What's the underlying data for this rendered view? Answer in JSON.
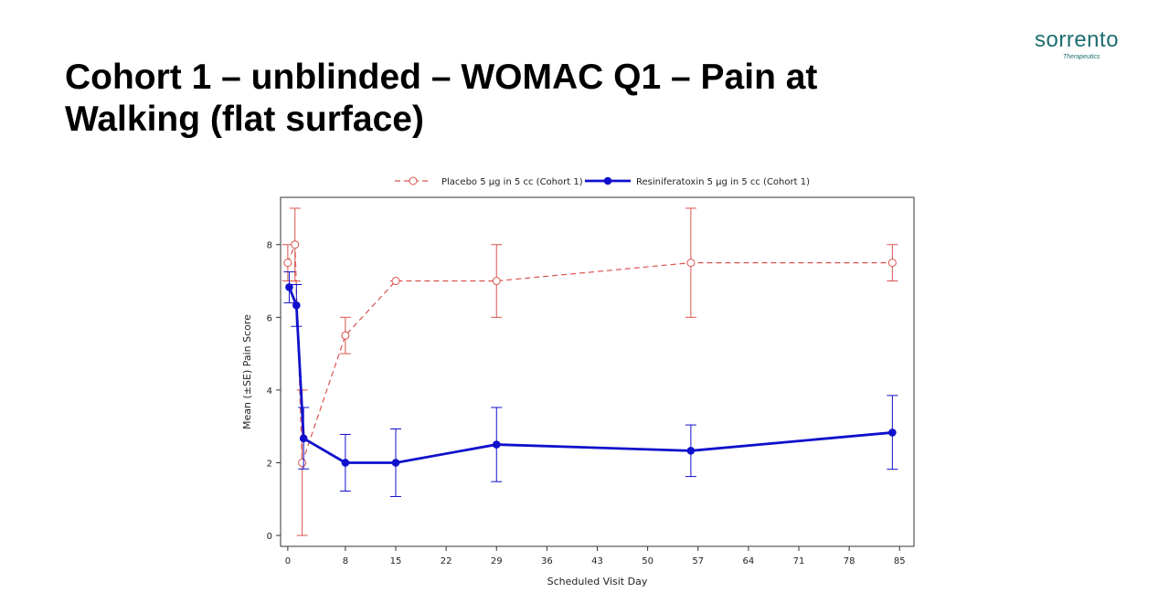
{
  "slide": {
    "title_line1": "Cohort 1 – unblinded – WOMAC Q1 – Pain at",
    "title_line2": "Walking (flat surface)"
  },
  "logo": {
    "wordmark": "sorrento",
    "subtitle": "Therapeutics",
    "color": "#1f6e6e"
  },
  "chart_data": {
    "type": "line",
    "title": "",
    "xlabel": "Scheduled Visit Day",
    "ylabel": "Mean (±SE) Pain Score",
    "xlim": [
      -1,
      87
    ],
    "ylim": [
      -0.3,
      9.3
    ],
    "xticks": [
      0,
      8,
      15,
      22,
      29,
      36,
      43,
      50,
      57,
      64,
      71,
      78,
      85
    ],
    "yticks": [
      0,
      2,
      4,
      6,
      8
    ],
    "grid": false,
    "legend_position": "top",
    "series": [
      {
        "name": "Placebo 5 µg in 5 cc (Cohort 1)",
        "color": "#d9534f",
        "line_style": "dashed",
        "marker": "open-circle",
        "x": [
          0,
          1,
          2,
          8,
          15,
          29,
          56,
          84
        ],
        "y": [
          7.5,
          8.0,
          2.0,
          5.5,
          7.0,
          7.0,
          7.5,
          7.5
        ],
        "err_low": [
          7.0,
          7.0,
          0.0,
          5.0,
          7.0,
          6.0,
          6.0,
          7.0
        ],
        "err_high": [
          8.0,
          9.0,
          4.0,
          6.0,
          7.0,
          8.0,
          9.0,
          8.0
        ]
      },
      {
        "name": "Resiniferatoxin 5 µg in 5 cc (Cohort 1)",
        "color": "#1010cc",
        "line_style": "solid",
        "marker": "filled-circle",
        "x": [
          0.2,
          1.2,
          2.2,
          8,
          15,
          29,
          56,
          84
        ],
        "y": [
          6.83,
          6.33,
          2.67,
          2.0,
          2.0,
          2.5,
          2.33,
          2.83
        ],
        "err_low": [
          6.4,
          5.75,
          1.83,
          1.22,
          1.07,
          1.48,
          1.62,
          1.82
        ],
        "err_high": [
          7.25,
          6.9,
          3.52,
          2.78,
          2.93,
          3.52,
          3.04,
          3.85
        ]
      }
    ]
  }
}
